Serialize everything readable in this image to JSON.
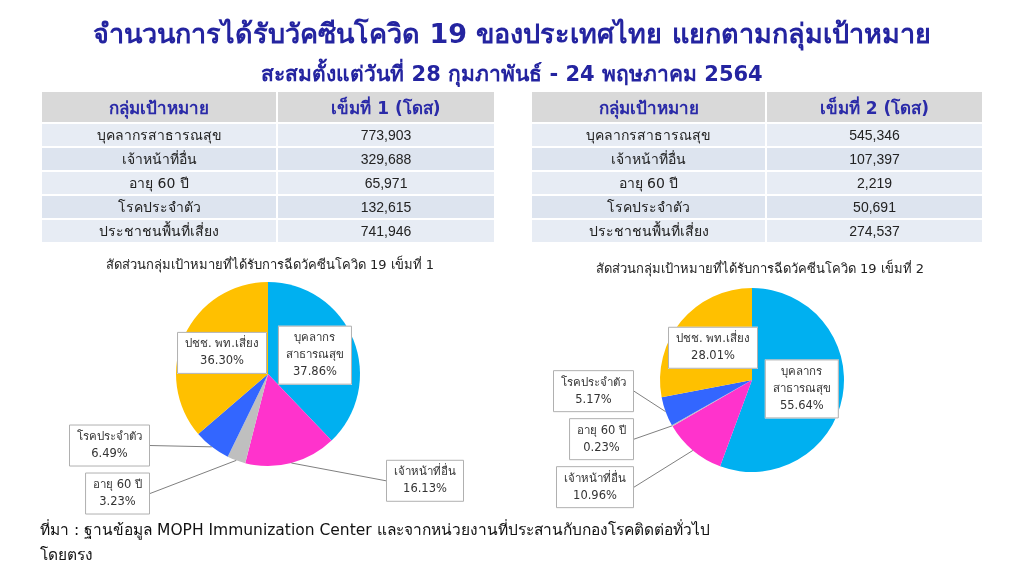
{
  "chart_data": [
    {
      "type": "other",
      "title": "จำนวนการได้รับวัคซีนโควิด 19 ของประเทศไทย แยกตามกลุ่มเป้าหมาย",
      "subtitle": "สะสมตั้งแต่วันที่ 28 กุมภาพันธ์ - 24 พฤษภาคม 2564",
      "xlabel": "กลุ่มเป้าหมาย",
      "ylabel": "เข็มที่ 1 (โดส)",
      "categories": [
        "บุคลากรสาธารณสุข",
        "เจ้าหน้าที่อื่น",
        "อายุ 60 ปี",
        "โรคประจำตัว",
        "ประชาชนพื้นที่เสี่ยง"
      ],
      "values": [
        773903,
        329688,
        65971,
        132615,
        741946
      ],
      "value_labels": [
        "773,903",
        "329,688",
        "65,971",
        "132,615",
        "741,946"
      ]
    },
    {
      "type": "other",
      "xlabel": "กลุ่มเป้าหมาย",
      "ylabel": "เข็มที่ 2 (โดส)",
      "categories": [
        "บุคลากรสาธารณสุข",
        "เจ้าหน้าที่อื่น",
        "อายุ 60 ปี",
        "โรคประจำตัว",
        "ประชาชนพื้นที่เสี่ยง"
      ],
      "values": [
        545346,
        107397,
        2219,
        50691,
        274537
      ],
      "value_labels": [
        "545,346",
        "107,397",
        "2,219",
        "50,691",
        "274,537"
      ]
    },
    {
      "type": "pie",
      "title": "สัดส่วนกลุ่มเป้าหมายที่ได้รับการฉีดวัคซีนโควิด 19 เข็มที่ 1",
      "categories": [
        "บุคลากร\nสาธารณสุข",
        "เจ้าหน้าที่อื่น",
        "อายุ 60 ปี",
        "โรคประจำตัว",
        "ปชช. พท.เสี่ยง"
      ],
      "values": [
        37.86,
        16.13,
        3.23,
        6.49,
        36.3
      ],
      "value_labels": [
        "37.86%",
        "16.13%",
        "3.23%",
        "6.49%",
        "36.30%"
      ],
      "colors": [
        "#00b0f0",
        "#ff33cc",
        "#bfbfbf",
        "#3366ff",
        "#ffc000"
      ],
      "annotations": [
        "ที่มา : ฐานข้อมูล MOPH Immunization Center และจากหน่วยงานที่ประสานกับกองโรคติดต่อทั่วไปโดยตรง"
      ]
    },
    {
      "type": "pie",
      "title": "สัดส่วนกลุ่มเป้าหมายที่ได้รับการฉีดวัคซีนโควิด 19 เข็มที่ 2",
      "categories": [
        "บุคลากร\nสาธารณสุข",
        "เจ้าหน้าที่อื่น",
        "อายุ 60 ปี",
        "โรคประจำตัว",
        "ปชช. พท.เสี่ยง"
      ],
      "values": [
        55.64,
        10.96,
        0.23,
        5.17,
        28.01
      ],
      "value_labels": [
        "55.64%",
        "10.96%",
        "0.23%",
        "5.17%",
        "28.01%"
      ],
      "colors": [
        "#00b0f0",
        "#ff33cc",
        "#bfbfbf",
        "#3366ff",
        "#ffc000"
      ]
    }
  ]
}
